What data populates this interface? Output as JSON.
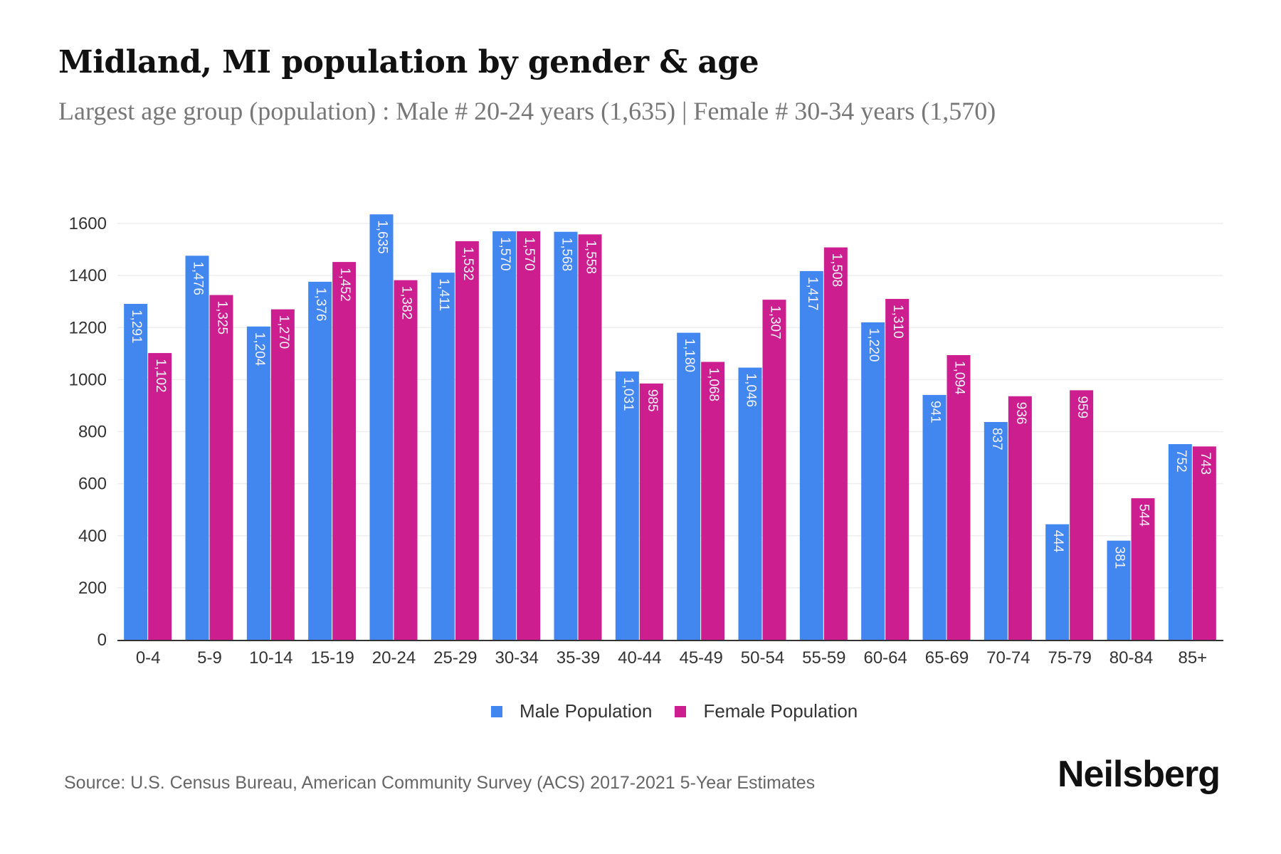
{
  "header": {
    "title": "Midland, MI population by gender & age",
    "subtitle": "Largest age group (population) : Male # 20-24 years (1,635) | Female # 30-34 years (1,570)"
  },
  "colors": {
    "male": "#4286F0",
    "female": "#CC1E8F"
  },
  "chart_data": {
    "type": "bar",
    "title": "Midland, MI population by gender & age",
    "subtitle": "Largest age group (population) : Male # 20-24 years (1,635) | Female # 30-34 years (1,570)",
    "xlabel": "",
    "ylabel": "",
    "ylim": [
      0,
      1600
    ],
    "yticks": [
      0,
      200,
      400,
      600,
      800,
      1000,
      1200,
      1400,
      1600
    ],
    "grid": true,
    "legend_position": "bottom-center",
    "categories": [
      "0-4",
      "5-9",
      "10-14",
      "15-19",
      "20-24",
      "25-29",
      "30-34",
      "35-39",
      "40-44",
      "45-49",
      "50-54",
      "55-59",
      "60-64",
      "65-69",
      "70-74",
      "75-79",
      "80-84",
      "85+"
    ],
    "series": [
      {
        "name": "Male Population",
        "values": [
          1291,
          1476,
          1204,
          1376,
          1635,
          1411,
          1570,
          1568,
          1031,
          1180,
          1046,
          1417,
          1220,
          941,
          837,
          444,
          381,
          752
        ],
        "labels": [
          "1,291",
          "1,476",
          "1,204",
          "1,376",
          "1,635",
          "1,411",
          "1,570",
          "1,568",
          "1,031",
          "1,180",
          "1,046",
          "1,417",
          "1,220",
          "941",
          "837",
          "444",
          "381",
          "752"
        ]
      },
      {
        "name": "Female Population",
        "values": [
          1102,
          1325,
          1270,
          1452,
          1382,
          1532,
          1570,
          1558,
          985,
          1068,
          1307,
          1508,
          1310,
          1094,
          936,
          959,
          544,
          743
        ],
        "labels": [
          "1,102",
          "1,325",
          "1,270",
          "1,452",
          "1,382",
          "1,532",
          "1,570",
          "1,558",
          "985",
          "1,068",
          "1,307",
          "1,508",
          "1,310",
          "1,094",
          "936",
          "959",
          "544",
          "743"
        ]
      }
    ]
  },
  "legend": {
    "items": [
      {
        "label": "Male Population"
      },
      {
        "label": "Female Population"
      }
    ]
  },
  "footer": {
    "source": "Source: U.S. Census Bureau, American Community Survey (ACS) 2017-2021 5-Year Estimates",
    "logo": "Neilsberg"
  }
}
